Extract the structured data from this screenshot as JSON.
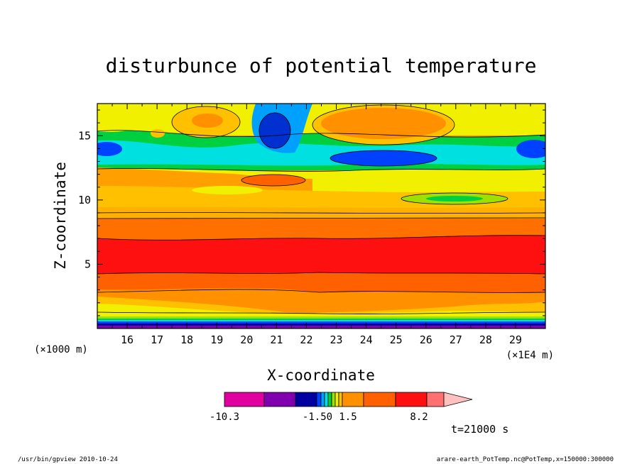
{
  "chart_data": {
    "type": "heatmap",
    "title": "disturbunce of potential temperature",
    "xlabel": "X-coordinate",
    "ylabel": "Z-coordinate",
    "x_unit_left": "(×1000 m)",
    "x_unit_right": "(×1E4 m)",
    "xlim": [
      15.0,
      30.0
    ],
    "ylim": [
      0,
      17.5
    ],
    "x_ticks": [
      16,
      17,
      18,
      19,
      20,
      21,
      22,
      23,
      24,
      25,
      26,
      27,
      28,
      29
    ],
    "y_ticks": [
      5,
      10,
      15
    ],
    "colorbar": {
      "labels": [
        "-10.3",
        "-1.50",
        "1.5",
        "8.2"
      ],
      "colors": [
        "#e000a0",
        "#8000b0",
        "#0000a0",
        "#0040ff",
        "#00a0ff",
        "#00e0e0",
        "#00d040",
        "#a0e000",
        "#f0f000",
        "#ffc000",
        "#ff9000",
        "#ff6000",
        "#ff1010",
        "#ff7070",
        "#ffc0c0"
      ]
    },
    "time_label": "t=21000 s"
  },
  "footer": {
    "left": "/usr/bin/gpview   2010-10-24",
    "right": "arare-earth_PotTemp.nc@PotTemp,x=150000:300000"
  }
}
